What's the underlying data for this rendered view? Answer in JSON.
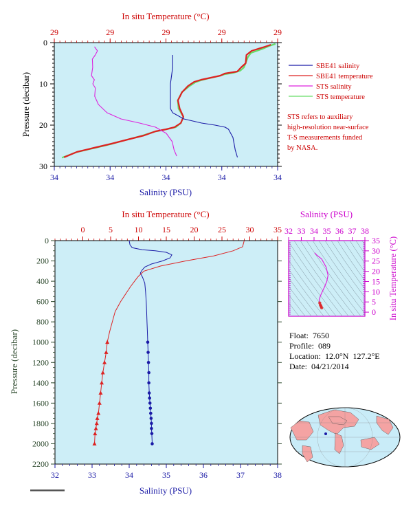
{
  "colors": {
    "panel_bg": "#cdeef7",
    "salinity": "#1a1aa6",
    "temperature": "#dd2222",
    "sts_salinity": "#dd22dd",
    "sts_temperature": "#66dd66",
    "axis_red": "#cc0000",
    "axis_blue": "#1a1aa6",
    "axis_magenta": "#cc00cc",
    "axis_green": "#2e4a2e"
  },
  "info": {
    "float": "Float:  7650",
    "profile": "Profile:  089",
    "location": "Location:  12.0°N  127.2°E",
    "date": "Date:  04/21/2014"
  },
  "note": "STS refers to auxiliary high-resolution near-surface T-S measurements funded by NASA.",
  "chart_data": [
    {
      "type": "line",
      "id": "near-surface",
      "title": "In situ Temperature (°C)",
      "xlabel": "Salinity (PSU)",
      "ylabel": "Pressure (decibar)",
      "x_ticks": [
        "34",
        "34",
        "34",
        "34",
        "34"
      ],
      "top_ticks": [
        "29",
        "29",
        "29",
        "29",
        "29"
      ],
      "y_ticks": [
        "0",
        "10",
        "20",
        "30"
      ],
      "ylim": [
        0,
        30
      ],
      "y_inverted": true,
      "legend": [
        "SBE41 salinity",
        "SBE41 temperature",
        "STS salinity",
        "STS temperature"
      ],
      "legend_position": "right",
      "series": [
        {
          "name": "SBE41 salinity",
          "x_axis": "bottom-fraction",
          "x": [
            0.53,
            0.53,
            0.52,
            0.52,
            0.52,
            0.53,
            0.58,
            0.66,
            0.72,
            0.765,
            0.78,
            0.8,
            0.81,
            0.82
          ],
          "y": [
            3,
            6,
            10,
            14,
            16,
            17,
            18.5,
            19.5,
            20,
            20.5,
            21,
            23,
            26,
            27.8
          ]
        },
        {
          "name": "SBE41 temperature",
          "x_axis": "top-fraction",
          "x": [
            0.97,
            0.94,
            0.88,
            0.86,
            0.86,
            0.84,
            0.82,
            0.76,
            0.74,
            0.7,
            0.66,
            0.63,
            0.6,
            0.57,
            0.55,
            0.56,
            0.58,
            0.57,
            0.54,
            0.5,
            0.45,
            0.4,
            0.33,
            0.26,
            0.18,
            0.1,
            0.04
          ],
          "y": [
            0.5,
            1,
            2,
            3,
            5,
            6,
            7,
            7.5,
            8,
            8.5,
            9,
            9.5,
            10.5,
            12,
            14,
            16,
            18,
            19.5,
            20.5,
            21,
            21.5,
            22.5,
            23.5,
            24.5,
            25.5,
            26.5,
            27.8
          ]
        },
        {
          "name": "STS salinity",
          "x_axis": "bottom-fraction",
          "x": [
            0.18,
            0.19,
            0.18,
            0.17,
            0.175,
            0.17,
            0.18,
            0.17,
            0.18,
            0.18,
            0.2,
            0.24,
            0.3,
            0.38,
            0.45,
            0.5,
            0.53,
            0.54,
            0.55
          ],
          "y": [
            1,
            2,
            3,
            4,
            6,
            8,
            9,
            10,
            11,
            13,
            15,
            17,
            18.5,
            19.5,
            20.5,
            22,
            24,
            26,
            27.5
          ]
        },
        {
          "name": "STS temperature",
          "x_axis": "top-fraction",
          "x": [
            0.99,
            0.96,
            0.93,
            0.88,
            0.87,
            0.86,
            0.85,
            0.83,
            0.8,
            0.76,
            0.74,
            0.7,
            0.66,
            0.63,
            0.6,
            0.57,
            0.555,
            0.56,
            0.58,
            0.565,
            0.54,
            0.5,
            0.45,
            0.4,
            0.33,
            0.26,
            0.18,
            0.1,
            0.035
          ],
          "y": [
            0.3,
            0.8,
            1.5,
            2.5,
            3.5,
            5,
            6,
            6.8,
            7.3,
            7.7,
            8.1,
            8.6,
            9.1,
            9.6,
            10.6,
            12,
            14,
            16,
            18,
            19.5,
            20.5,
            21,
            21.6,
            22.5,
            23.5,
            24.5,
            25.5,
            26.5,
            27.9
          ]
        }
      ]
    },
    {
      "type": "line",
      "id": "full-profile",
      "title": "In situ Temperature (°C)",
      "xlabel": "Salinity (PSU)",
      "ylabel": "Pressure (decibar)",
      "xlim": [
        32,
        38
      ],
      "x_ticks": [
        "32",
        "33",
        "34",
        "35",
        "36",
        "37",
        "38"
      ],
      "top_xlim": [
        -5,
        35
      ],
      "top_ticks": [
        "0",
        "5",
        "10",
        "15",
        "20",
        "25",
        "30",
        "35"
      ],
      "ylim": [
        0,
        2200
      ],
      "y_inverted": true,
      "y_ticks": [
        "0",
        "200",
        "400",
        "600",
        "800",
        "1000",
        "1200",
        "1400",
        "1600",
        "1800",
        "2000",
        "2200"
      ],
      "series": [
        {
          "name": "Salinity",
          "axis": "bottom",
          "x": [
            34.0,
            34.02,
            34.08,
            34.35,
            34.7,
            35.0,
            35.15,
            35.1,
            34.9,
            34.6,
            34.42,
            34.35,
            34.3,
            34.36,
            34.42,
            34.44,
            34.46,
            34.47,
            34.48,
            34.49,
            34.5,
            34.51,
            34.52,
            34.53,
            34.53,
            34.54,
            34.55,
            34.56,
            34.57,
            34.58,
            34.59,
            34.6,
            34.6,
            34.61,
            34.62
          ],
          "y": [
            0,
            40,
            70,
            90,
            100,
            115,
            140,
            170,
            200,
            230,
            260,
            290,
            320,
            360,
            420,
            500,
            600,
            700,
            800,
            900,
            1000,
            1100,
            1200,
            1300,
            1400,
            1500,
            1550,
            1600,
            1650,
            1700,
            1750,
            1800,
            1850,
            1900,
            2000
          ],
          "markers_from": 1000,
          "marker": "circle"
        },
        {
          "name": "Temperature",
          "axis": "top",
          "x": [
            29.0,
            28.9,
            28.7,
            27.0,
            23.5,
            18.5,
            14.0,
            11.0,
            10.0,
            9.3,
            8.6,
            8.0,
            7.4,
            6.8,
            6.3,
            5.8,
            5.3,
            4.8,
            4.4,
            4.2,
            3.9,
            3.6,
            3.4,
            3.2,
            3.0,
            2.8,
            2.6,
            2.5,
            2.35,
            2.2,
            2.1
          ],
          "y": [
            0,
            20,
            60,
            100,
            150,
            200,
            250,
            300,
            350,
            400,
            450,
            500,
            550,
            600,
            650,
            700,
            800,
            900,
            1000,
            1100,
            1200,
            1300,
            1400,
            1500,
            1600,
            1700,
            1750,
            1800,
            1850,
            1900,
            2000
          ],
          "markers_from": 1000,
          "marker": "triangle"
        }
      ]
    },
    {
      "type": "scatter",
      "id": "ts-diagram",
      "title": "Salinity (PSU)",
      "ylabel": "In situ Temperature (°C)",
      "xlim": [
        32,
        38
      ],
      "x_ticks": [
        "32",
        "33",
        "34",
        "35",
        "36",
        "37",
        "38"
      ],
      "ylim": [
        -2,
        35
      ],
      "y_ticks": [
        "0",
        "5",
        "10",
        "15",
        "20",
        "25",
        "30",
        "35"
      ],
      "series": [
        {
          "name": "T-S",
          "x": [
            34.05,
            34.2,
            34.6,
            34.95,
            35.1,
            35.0,
            34.8,
            34.65,
            34.5,
            34.4,
            34.45,
            34.5,
            34.55,
            34.6
          ],
          "y": [
            29,
            28,
            26,
            22,
            18,
            15,
            12,
            10,
            8,
            6,
            4.5,
            3.5,
            2.8,
            2.1
          ]
        }
      ]
    }
  ]
}
